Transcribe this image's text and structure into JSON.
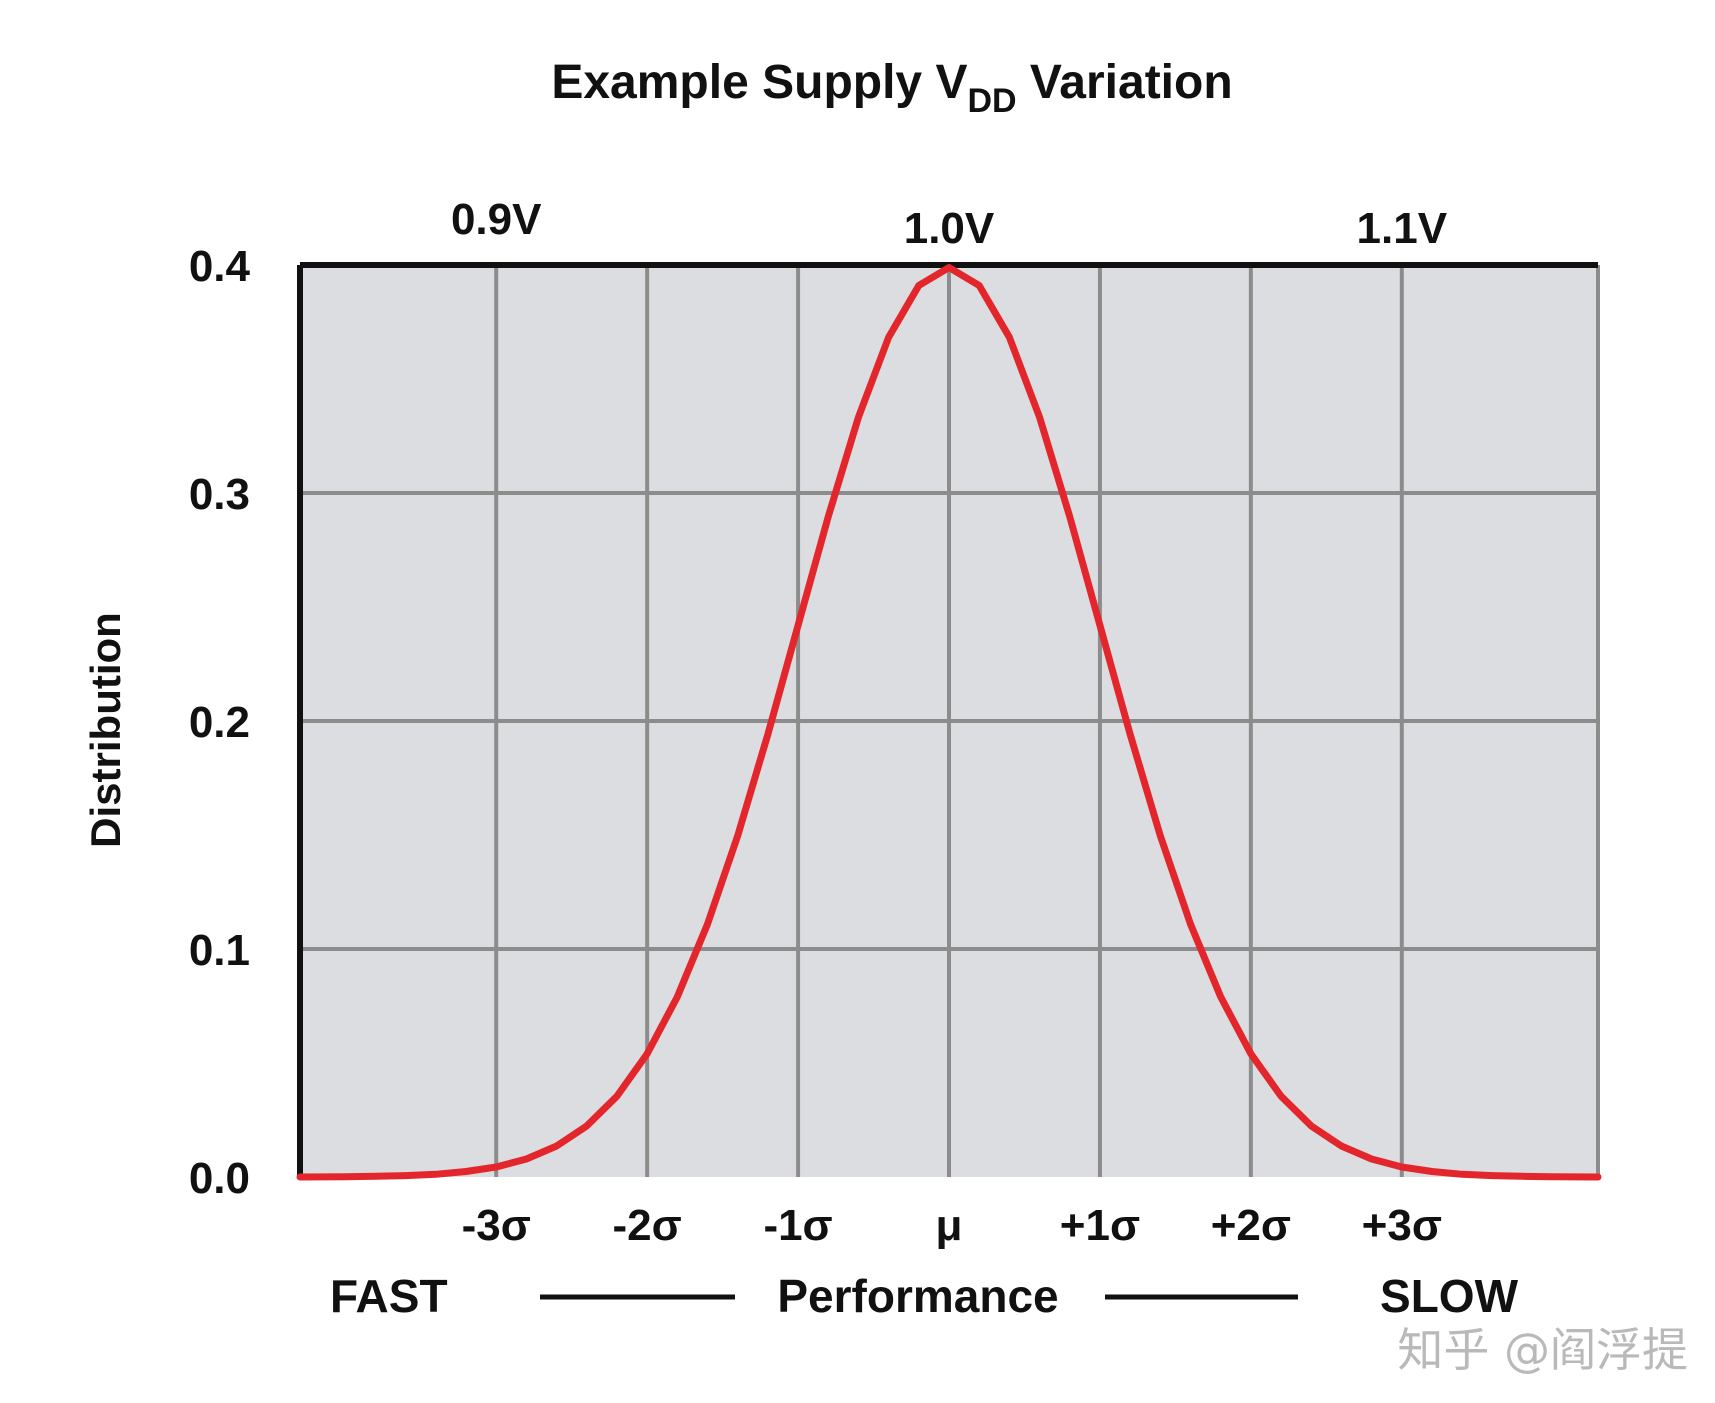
{
  "chart_data": {
    "type": "line",
    "title": {
      "prefix": "Example Supply V",
      "subscript": "DD",
      "suffix": " Variation"
    },
    "ylabel": "Distribution",
    "ylim": [
      0.0,
      0.4
    ],
    "yticks": [
      "0.0",
      "0.1",
      "0.2",
      "0.3",
      "0.4"
    ],
    "xlim": [
      -4.3,
      4.3
    ],
    "xticks": [
      {
        "x": -3,
        "label": "-3σ"
      },
      {
        "x": -2,
        "label": "-2σ"
      },
      {
        "x": -1,
        "label": "-1σ"
      },
      {
        "x": 0,
        "label": "μ"
      },
      {
        "x": 1,
        "label": "+1σ"
      },
      {
        "x": 2,
        "label": "+2σ"
      },
      {
        "x": 3,
        "label": "+3σ"
      }
    ],
    "top_labels": [
      {
        "x": -3,
        "label": "0.9V"
      },
      {
        "x": 0,
        "label": "1.0V"
      },
      {
        "x": 3,
        "label": "1.1V"
      }
    ],
    "performance": {
      "left": "FAST",
      "center": "Performance",
      "right": "SLOW"
    },
    "series": [
      {
        "name": "Normal distribution",
        "color": "#e3262c",
        "x": [
          -4.3,
          -4.0,
          -3.8,
          -3.6,
          -3.4,
          -3.2,
          -3.0,
          -2.8,
          -2.6,
          -2.4,
          -2.2,
          -2.0,
          -1.8,
          -1.6,
          -1.4,
          -1.2,
          -1.0,
          -0.8,
          -0.6,
          -0.4,
          -0.2,
          0.0,
          0.2,
          0.4,
          0.6,
          0.8,
          1.0,
          1.2,
          1.4,
          1.6,
          1.8,
          2.0,
          2.2,
          2.4,
          2.6,
          2.8,
          3.0,
          3.2,
          3.4,
          3.6,
          3.8,
          4.0,
          4.3
        ],
        "y": [
          0.0,
          0.0001,
          0.0003,
          0.0006,
          0.0012,
          0.0024,
          0.0044,
          0.0079,
          0.0136,
          0.0224,
          0.0355,
          0.054,
          0.079,
          0.1109,
          0.1497,
          0.1942,
          0.242,
          0.2897,
          0.3332,
          0.3683,
          0.391,
          0.3989,
          0.391,
          0.3683,
          0.3332,
          0.2897,
          0.242,
          0.1942,
          0.1497,
          0.1109,
          0.079,
          0.054,
          0.0355,
          0.0224,
          0.0136,
          0.0079,
          0.0044,
          0.0024,
          0.0012,
          0.0006,
          0.0003,
          0.0001,
          0.0
        ]
      }
    ],
    "grid": true
  },
  "watermark": "知乎 @阎浮提"
}
